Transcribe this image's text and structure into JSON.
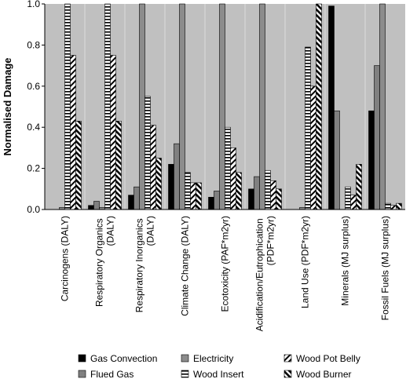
{
  "chart_data": {
    "type": "bar",
    "y_label": "Normalised Damage",
    "categories": [
      "Carcinogens (DALY)",
      "Respiratory Organics (DALY)",
      "Respiratory Inorganics (DALY)",
      "Climate Change (DALY)",
      "Ecotoxicity (PAF*m2yr)",
      "Acidification/Eutrophication (PDF*m2yr)",
      "Land Use (PDF*m2yr)",
      "Minerals (MJ surplus)",
      "Fossil Fuels (MJ surplus)"
    ],
    "series": [
      {
        "name": "Gas Convection",
        "color": "#000000",
        "values": [
          0,
          0.02,
          0.07,
          0.22,
          0.06,
          0.1,
          0,
          0.99,
          0.48
        ]
      },
      {
        "name": "Flued Gas",
        "color": "#808080",
        "values": [
          0,
          0.04,
          0.11,
          0.32,
          0.09,
          0.16,
          0,
          0.48,
          0.7
        ]
      },
      {
        "name": "Electricity",
        "color": "#8c8c8c",
        "values": [
          0.01,
          0.01,
          1.0,
          1.0,
          1.0,
          1.0,
          0.01,
          0,
          1.0
        ]
      },
      {
        "name": "Wood Insert",
        "color": "#ffffff",
        "pattern": "horizontal",
        "values": [
          1.0,
          1.0,
          0.55,
          0.18,
          0.4,
          0.19,
          0.79,
          0.11,
          0.03
        ]
      },
      {
        "name": "Wood Pot Belly",
        "color": "#ffffff",
        "pattern": "diagonal-up",
        "values": [
          0.75,
          0.75,
          0.41,
          0.13,
          0.3,
          0.14,
          0.6,
          0.07,
          0.02
        ]
      },
      {
        "name": "Wood Burner",
        "color": "#ffffff",
        "pattern": "diagonal-down",
        "values": [
          0.43,
          0.43,
          0.25,
          0.13,
          0.18,
          0.1,
          1.0,
          0.22,
          0.03
        ]
      }
    ],
    "ylim": [
      0,
      1.0
    ],
    "yticks": [
      {
        "value": 0,
        "label": "0.0"
      },
      0.2,
      0.4,
      0.6,
      0.8,
      {
        "value": 1.0,
        "label": "1.0"
      }
    ],
    "plot_background": "#c0c0c0"
  }
}
